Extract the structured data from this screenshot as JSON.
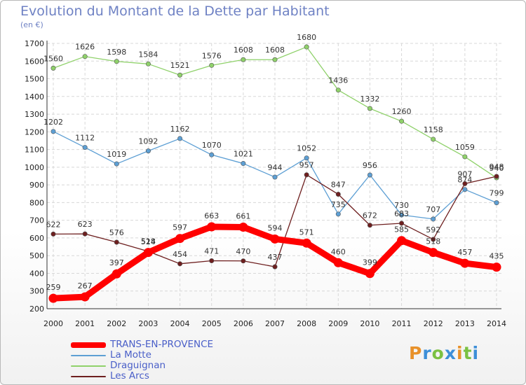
{
  "header": {
    "title": "Evolution du Montant de la Dette par Habitant",
    "unit": "(en €)"
  },
  "logo": {
    "letters": [
      {
        "ch": "P",
        "color": "#e8912a"
      },
      {
        "ch": "r",
        "color": "#3d8fd8"
      },
      {
        "ch": "o",
        "color": "#7bc142"
      },
      {
        "ch": "x",
        "color": "#3d8fd8"
      },
      {
        "ch": "i",
        "color": "#e8912a"
      },
      {
        "ch": "t",
        "color": "#7bc142"
      },
      {
        "ch": "i",
        "color": "#3d8fd8"
      }
    ]
  },
  "chart_data": {
    "type": "line",
    "title": "Evolution du Montant de la Dette par Habitant",
    "ylabel": "(en €)",
    "xlabel": "",
    "ylim": [
      200,
      1700
    ],
    "y_ticks": [
      200,
      300,
      400,
      500,
      600,
      700,
      800,
      900,
      1000,
      1100,
      1200,
      1300,
      1400,
      1500,
      1600,
      1700
    ],
    "grid": true,
    "legend_position": "bottom-left",
    "x": [
      "2000",
      "2001",
      "2002",
      "2003",
      "2004",
      "2005",
      "2006",
      "2007",
      "2008",
      "2009",
      "2010",
      "2011",
      "2012",
      "2013",
      "2014"
    ],
    "series": [
      {
        "name": "Draguignan",
        "color": "#8fd16a",
        "values": [
          1560,
          1626,
          1598,
          1584,
          1521,
          1576,
          1608,
          1608,
          1680,
          1436,
          1332,
          1260,
          1158,
          1059,
          940
        ]
      },
      {
        "name": "La Motte",
        "color": "#5d9fd4",
        "values": [
          1202,
          1112,
          1019,
          1092,
          1162,
          1070,
          1021,
          944,
          1052,
          735,
          956,
          730,
          707,
          874,
          799
        ]
      },
      {
        "name": "Les Arcs",
        "color": "#6e1f1f",
        "values": [
          622,
          623,
          576,
          524,
          454,
          471,
          470,
          437,
          957,
          847,
          672,
          683,
          592,
          907,
          948
        ]
      },
      {
        "name": "TRANS-EN-PROVENCE",
        "color": "#ff0000",
        "values": [
          259,
          267,
          397,
          518,
          597,
          663,
          661,
          594,
          571,
          460,
          399,
          585,
          518,
          457,
          435
        ]
      }
    ],
    "legend_order": [
      "TRANS-EN-PROVENCE",
      "La Motte",
      "Draguignan",
      "Les Arcs"
    ]
  }
}
